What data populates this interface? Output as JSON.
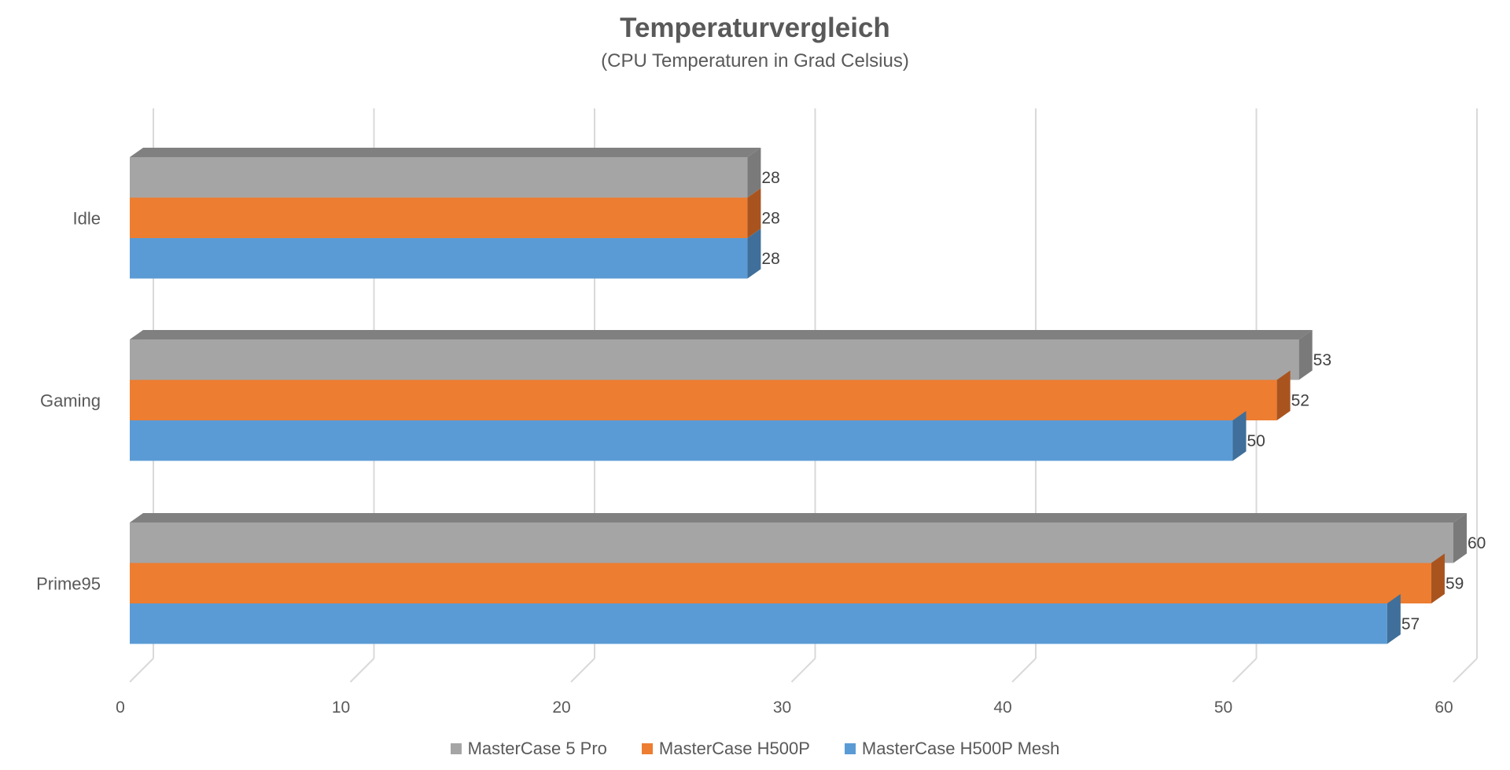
{
  "chart_data": {
    "type": "bar",
    "orientation": "horizontal",
    "title": "Temperaturvergleich",
    "subtitle": "(CPU Temperaturen in Grad Celsius)",
    "categories": [
      "Idle",
      "Gaming",
      "Prime95"
    ],
    "series": [
      {
        "name": "MasterCase 5 Pro",
        "color": "#a5a5a5",
        "side_color": "#7a7a7a",
        "values": [
          28,
          53,
          60
        ]
      },
      {
        "name": "MasterCase H500P",
        "color": "#ed7d31",
        "side_color": "#a9541f",
        "values": [
          28,
          52,
          59
        ]
      },
      {
        "name": "MasterCase H500P Mesh",
        "color": "#5b9bd5",
        "side_color": "#3f6f9a",
        "values": [
          28,
          50,
          57
        ]
      }
    ],
    "xlim": [
      0,
      60
    ],
    "xticks": [
      0,
      10,
      20,
      30,
      40,
      50,
      60
    ],
    "grid": true,
    "legend": "bottom",
    "data_labels": true
  }
}
